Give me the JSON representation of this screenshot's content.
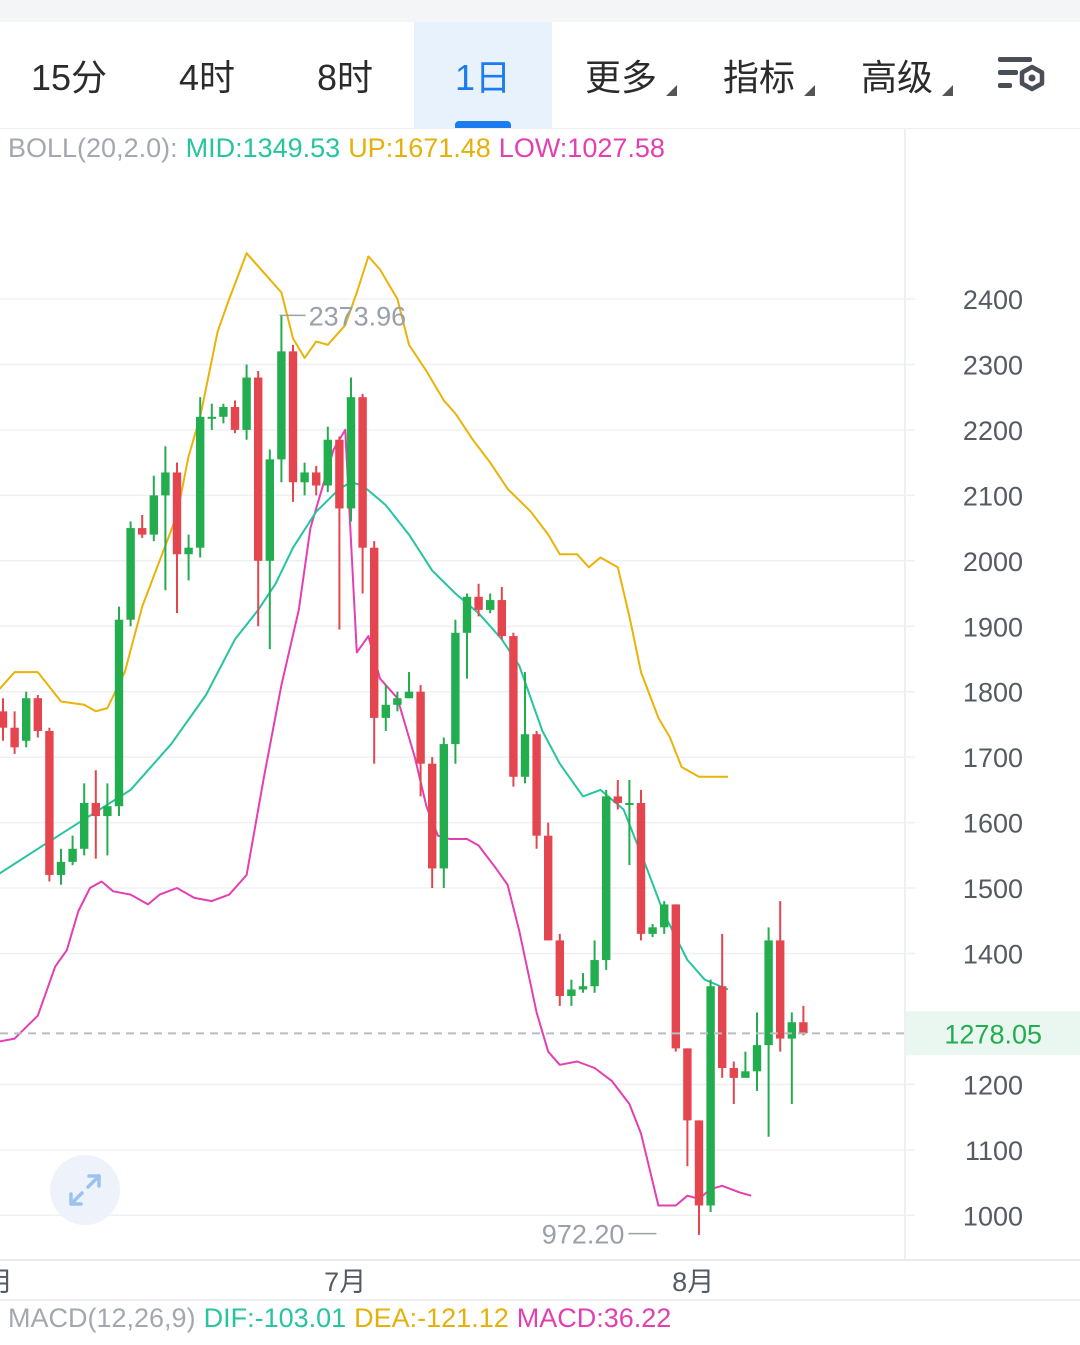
{
  "tabs": [
    {
      "label": "15分",
      "active": false
    },
    {
      "label": "4时",
      "active": false
    },
    {
      "label": "8时",
      "active": false
    },
    {
      "label": "1日",
      "active": true
    },
    {
      "label": "更多",
      "active": false,
      "dropdown": true
    },
    {
      "label": "指标",
      "active": false,
      "dropdown": true
    },
    {
      "label": "高级",
      "active": false,
      "dropdown": true
    }
  ],
  "settings_icon": "chart-settings-icon",
  "boll_legend": {
    "name": "BOLL(20,2.0):",
    "mid": "MID:1349.53",
    "up": "UP:1671.48",
    "low": "LOW:1027.58"
  },
  "macd_legend": {
    "name": "MACD(12,26,9)",
    "dif": "DIF:-103.01",
    "dea": "DEA:-121.12",
    "macd": "MACD:36.22"
  },
  "colors": {
    "up": "#22ad4f",
    "down": "#e5454f",
    "mid": "#27c4a0",
    "upper": "#eab308",
    "lower": "#e43fb1",
    "active_tab": "#1d7bf0",
    "grid": "#eef0f3"
  },
  "expand_icon": "expand-arrows-icon",
  "chart_data": {
    "type": "candlestick",
    "yticks": [
      2400,
      2300,
      2200,
      2100,
      2000,
      1900,
      1800,
      1700,
      1600,
      1500,
      1400,
      1200,
      1100,
      1000
    ],
    "ylim": [
      965,
      2520
    ],
    "x_labels": [
      {
        "label": "月",
        "index": -0.3
      },
      {
        "label": "7月",
        "index": 29.5
      },
      {
        "label": "8月",
        "index": 59.5
      }
    ],
    "current_price": "1278.05",
    "max_label": "2373.96",
    "max_label_index": 23.5,
    "min_label": "972.20",
    "min_label_index": 56.5,
    "candles": [
      [
        1770,
        1745,
        1790,
        1725
      ],
      [
        1745,
        1715,
        1770,
        1705
      ],
      [
        1725,
        1790,
        1800,
        1715
      ],
      [
        1790,
        1740,
        1795,
        1730
      ],
      [
        1740,
        1520,
        1745,
        1510
      ],
      [
        1520,
        1540,
        1560,
        1505
      ],
      [
        1540,
        1560,
        1580,
        1535
      ],
      [
        1560,
        1630,
        1660,
        1550
      ],
      [
        1630,
        1610,
        1680,
        1545
      ],
      [
        1610,
        1625,
        1660,
        1550
      ],
      [
        1625,
        1910,
        1930,
        1610
      ],
      [
        1910,
        2050,
        2060,
        1900
      ],
      [
        2050,
        2040,
        2070,
        2035
      ],
      [
        2040,
        2100,
        2130,
        2030
      ],
      [
        2100,
        2135,
        2175,
        1955
      ],
      [
        2135,
        2010,
        2150,
        1920
      ],
      [
        2010,
        2020,
        2040,
        1970
      ],
      [
        2020,
        2220,
        2250,
        2005
      ],
      [
        2220,
        2220,
        2240,
        2200
      ],
      [
        2220,
        2235,
        2240,
        2210
      ],
      [
        2235,
        2200,
        2245,
        2195
      ],
      [
        2200,
        2280,
        2300,
        2185
      ],
      [
        2280,
        2000,
        2290,
        1900
      ],
      [
        2000,
        2155,
        2170,
        1865
      ],
      [
        2155,
        2320,
        2375,
        2120
      ],
      [
        2320,
        2120,
        2330,
        2090
      ],
      [
        2120,
        2135,
        2150,
        2100
      ],
      [
        2135,
        2115,
        2145,
        2100
      ],
      [
        2115,
        2185,
        2205,
        2105
      ],
      [
        2185,
        2080,
        2190,
        1895
      ],
      [
        2080,
        2250,
        2280,
        2060
      ],
      [
        2250,
        2020,
        2255,
        1950
      ],
      [
        2020,
        1760,
        2030,
        1690
      ],
      [
        1760,
        1780,
        1810,
        1740
      ],
      [
        1780,
        1790,
        1800,
        1770
      ],
      [
        1790,
        1800,
        1830,
        1790
      ],
      [
        1800,
        1690,
        1810,
        1640
      ],
      [
        1690,
        1530,
        1700,
        1500
      ],
      [
        1530,
        1720,
        1730,
        1500
      ],
      [
        1720,
        1890,
        1910,
        1690
      ],
      [
        1890,
        1945,
        1950,
        1820
      ],
      [
        1945,
        1925,
        1965,
        1915
      ],
      [
        1925,
        1940,
        1950,
        1920
      ],
      [
        1940,
        1885,
        1960,
        1880
      ],
      [
        1885,
        1670,
        1890,
        1655
      ],
      [
        1670,
        1735,
        1830,
        1660
      ],
      [
        1735,
        1580,
        1740,
        1560
      ],
      [
        1580,
        1420,
        1600,
        1420
      ],
      [
        1420,
        1335,
        1430,
        1320
      ],
      [
        1335,
        1345,
        1360,
        1320
      ],
      [
        1345,
        1350,
        1370,
        1340
      ],
      [
        1350,
        1390,
        1420,
        1340
      ],
      [
        1390,
        1640,
        1650,
        1375
      ],
      [
        1640,
        1630,
        1665,
        1620
      ],
      [
        1630,
        1630,
        1665,
        1535
      ],
      [
        1630,
        1430,
        1650,
        1420
      ],
      [
        1430,
        1440,
        1445,
        1425
      ],
      [
        1440,
        1475,
        1480,
        1430
      ],
      [
        1475,
        1255,
        1475,
        1250
      ],
      [
        1255,
        1145,
        1255,
        1075
      ],
      [
        1145,
        1015,
        1145,
        970
      ],
      [
        1015,
        1350,
        1360,
        1005
      ],
      [
        1350,
        1225,
        1430,
        1210
      ],
      [
        1225,
        1210,
        1235,
        1170
      ],
      [
        1210,
        1220,
        1250,
        1215
      ],
      [
        1220,
        1260,
        1310,
        1190
      ],
      [
        1260,
        1420,
        1440,
        1120
      ],
      [
        1420,
        1270,
        1480,
        1250
      ],
      [
        1270,
        1295,
        1310,
        1170
      ],
      [
        1295,
        1278,
        1320,
        1275
      ]
    ],
    "mid": [
      [
        -0.5,
        1520
      ],
      [
        3,
        1560
      ],
      [
        7,
        1605
      ],
      [
        11,
        1650
      ],
      [
        14.5,
        1720
      ],
      [
        17.5,
        1795
      ],
      [
        20,
        1880
      ],
      [
        22,
        1925
      ],
      [
        23.5,
        1965
      ],
      [
        25,
        2020
      ],
      [
        27,
        2075
      ],
      [
        29,
        2110
      ],
      [
        30,
        2120
      ],
      [
        31,
        2115
      ],
      [
        33,
        2085
      ],
      [
        35,
        2040
      ],
      [
        37,
        1985
      ],
      [
        39,
        1950
      ],
      [
        41,
        1920
      ],
      [
        43,
        1880
      ],
      [
        44.5,
        1840
      ],
      [
        46.5,
        1740
      ],
      [
        48,
        1690
      ],
      [
        50,
        1640
      ],
      [
        51.5,
        1650
      ],
      [
        53.5,
        1620
      ],
      [
        55.5,
        1530
      ],
      [
        57,
        1460
      ],
      [
        59,
        1390
      ],
      [
        60.5,
        1360
      ],
      [
        62.5,
        1345
      ]
    ],
    "upper": [
      [
        -0.5,
        1800
      ],
      [
        1,
        1830
      ],
      [
        3,
        1830
      ],
      [
        5,
        1785
      ],
      [
        7,
        1780
      ],
      [
        8,
        1770
      ],
      [
        9,
        1775
      ],
      [
        10.5,
        1830
      ],
      [
        12,
        1930
      ],
      [
        13.5,
        2000
      ],
      [
        15,
        2070
      ],
      [
        16,
        2160
      ],
      [
        17,
        2220
      ],
      [
        18.5,
        2350
      ],
      [
        19.5,
        2400
      ],
      [
        21,
        2470
      ],
      [
        22,
        2450
      ],
      [
        24,
        2410
      ],
      [
        25,
        2340
      ],
      [
        26,
        2310
      ],
      [
        27,
        2335
      ],
      [
        28,
        2330
      ],
      [
        29.5,
        2360
      ],
      [
        30.5,
        2410
      ],
      [
        31.5,
        2465
      ],
      [
        32.5,
        2445
      ],
      [
        34,
        2400
      ],
      [
        35,
        2330
      ],
      [
        36.5,
        2290
      ],
      [
        38,
        2245
      ],
      [
        39,
        2225
      ],
      [
        40.5,
        2185
      ],
      [
        42,
        2150
      ],
      [
        43.5,
        2110
      ],
      [
        45.5,
        2075
      ],
      [
        47,
        2040
      ],
      [
        48,
        2010
      ],
      [
        49.5,
        2010
      ],
      [
        50.5,
        1990
      ],
      [
        51.5,
        2005
      ],
      [
        53,
        1990
      ],
      [
        54,
        1915
      ],
      [
        55,
        1830
      ],
      [
        56.5,
        1760
      ],
      [
        57.5,
        1730
      ],
      [
        58.5,
        1685
      ],
      [
        60,
        1670
      ],
      [
        62.5,
        1670
      ]
    ],
    "lower": [
      [
        -0.5,
        1265
      ],
      [
        1,
        1270
      ],
      [
        3,
        1305
      ],
      [
        4.5,
        1380
      ],
      [
        5.5,
        1405
      ],
      [
        6.5,
        1465
      ],
      [
        7.5,
        1500
      ],
      [
        8.5,
        1510
      ],
      [
        9.5,
        1495
      ],
      [
        11,
        1490
      ],
      [
        12.5,
        1475
      ],
      [
        13.5,
        1490
      ],
      [
        15,
        1500
      ],
      [
        16.5,
        1485
      ],
      [
        18,
        1480
      ],
      [
        19.5,
        1490
      ],
      [
        21,
        1520
      ],
      [
        22.5,
        1670
      ],
      [
        24,
        1810
      ],
      [
        25.5,
        1925
      ],
      [
        26.5,
        2050
      ],
      [
        27.5,
        2110
      ],
      [
        28.5,
        2170
      ],
      [
        29.5,
        2200
      ],
      [
        30.5,
        1860
      ],
      [
        31.5,
        1885
      ],
      [
        32.5,
        1820
      ],
      [
        34,
        1790
      ],
      [
        35.5,
        1700
      ],
      [
        36.5,
        1625
      ],
      [
        37.5,
        1580
      ],
      [
        38.5,
        1575
      ],
      [
        40,
        1575
      ],
      [
        41,
        1565
      ],
      [
        42.5,
        1530
      ],
      [
        43.5,
        1505
      ],
      [
        44.5,
        1435
      ],
      [
        46,
        1310
      ],
      [
        47,
        1250
      ],
      [
        48,
        1230
      ],
      [
        49.5,
        1235
      ],
      [
        51,
        1225
      ],
      [
        52.5,
        1205
      ],
      [
        54,
        1170
      ],
      [
        55,
        1125
      ],
      [
        56.5,
        1015
      ],
      [
        58,
        1015
      ],
      [
        59,
        1030
      ],
      [
        60,
        1025
      ],
      [
        61,
        1040
      ],
      [
        62,
        1045
      ],
      [
        63.5,
        1035
      ],
      [
        64.5,
        1030
      ]
    ]
  }
}
